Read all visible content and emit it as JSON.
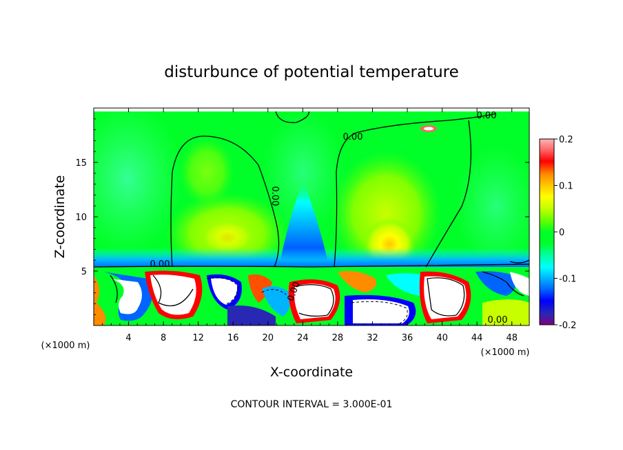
{
  "chart_data": {
    "type": "heatmap",
    "title": "disturbunce of potential temperature",
    "xlabel": "X-coordinate",
    "ylabel": "Z-coordinate",
    "x_unit": "(×1000 m)",
    "x_unit_right": "(×1000 m)",
    "xlim": [
      0,
      50
    ],
    "ylim": [
      0,
      20
    ],
    "xticks": [
      "4",
      "8",
      "12",
      "16",
      "20",
      "24",
      "28",
      "32",
      "36",
      "40",
      "44",
      "48"
    ],
    "yticks": [
      "5",
      "10",
      "15"
    ],
    "colorbar": {
      "range": [
        -0.2,
        0.2
      ],
      "ticks": [
        "0.2",
        "0.1",
        "0",
        "-0.1",
        "-0.2"
      ]
    },
    "contour_labels": [
      "0.00",
      "0.00",
      "0.00",
      "0.00",
      "0.00",
      "0.00"
    ],
    "note": "CONTOUR INTERVAL = 3.000E-01"
  },
  "colors": {
    "colormap": [
      "#800080",
      "#2828b4",
      "#0000ff",
      "#0064ff",
      "#00b4ff",
      "#00ffff",
      "#00ff96",
      "#00ff28",
      "#64ff00",
      "#c8ff00",
      "#ffff00",
      "#ffc800",
      "#ff8c00",
      "#ff5000",
      "#ff0000",
      "#ff6464",
      "#ffb4b4"
    ]
  }
}
